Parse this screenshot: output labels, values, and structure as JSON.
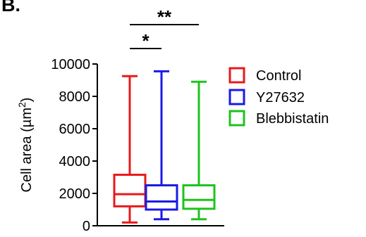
{
  "panel_label": "B.",
  "chart_data": {
    "type": "box",
    "ylabel_main": "Cell area (µm",
    "ylabel_sup": "2",
    "ylabel_end": ")",
    "ylim": [
      0,
      10000
    ],
    "yticks": [
      0,
      2000,
      4000,
      6000,
      8000,
      10000
    ],
    "ytick_labels": [
      "0",
      "2000",
      "4000",
      "6000",
      "8000",
      "10000"
    ],
    "series": [
      {
        "name": "Control",
        "color": "#e8191c",
        "min": 200,
        "q1": 1200,
        "median": 1950,
        "q3": 3150,
        "max": 9250
      },
      {
        "name": "Y27632",
        "color": "#1a1ae6",
        "min": 400,
        "q1": 1000,
        "median": 1500,
        "q3": 2500,
        "max": 9550
      },
      {
        "name": "Blebbistatin",
        "color": "#1ec31e",
        "min": 400,
        "q1": 1050,
        "median": 1600,
        "q3": 2500,
        "max": 8900
      }
    ],
    "significance": [
      {
        "from": 0,
        "to": 1,
        "label": "*"
      },
      {
        "from": 0,
        "to": 2,
        "label": "**"
      }
    ],
    "legend_position": "right"
  }
}
